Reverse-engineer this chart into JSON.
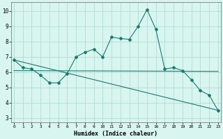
{
  "line1_x": [
    0,
    1,
    2,
    3,
    4,
    5,
    6,
    7,
    8,
    9,
    10,
    11,
    12,
    13,
    14,
    15,
    16,
    17,
    18,
    19,
    20,
    21,
    22,
    23
  ],
  "line1_y": [
    6.8,
    6.3,
    6.2,
    5.8,
    5.3,
    5.3,
    5.9,
    7.0,
    7.3,
    7.5,
    7.0,
    8.3,
    8.2,
    8.15,
    9.0,
    10.1,
    8.8,
    6.2,
    6.3,
    6.1,
    5.5,
    4.8,
    4.5,
    3.5
  ],
  "line2_x": [
    0,
    23
  ],
  "line2_y": [
    6.8,
    3.5
  ],
  "line3_x": [
    0,
    23
  ],
  "line3_y": [
    6.1,
    6.05
  ],
  "line_color": "#1a7a6e",
  "bg_color": "#d8f5f0",
  "grid_color": "#a8d8d0",
  "xlabel": "Humidex (Indice chaleur)",
  "xtick_labels": [
    "0",
    "1",
    "2",
    "3",
    "4",
    "5",
    "6",
    "7",
    "8",
    "9",
    "10",
    "11",
    "12",
    "13",
    "14",
    "15",
    "16",
    "17",
    "18",
    "19",
    "20",
    "21",
    "22",
    "23"
  ],
  "ytick_vals": [
    3,
    4,
    5,
    6,
    7,
    8,
    9,
    10
  ],
  "xlim": [
    -0.3,
    23.3
  ],
  "ylim": [
    2.7,
    10.6
  ]
}
